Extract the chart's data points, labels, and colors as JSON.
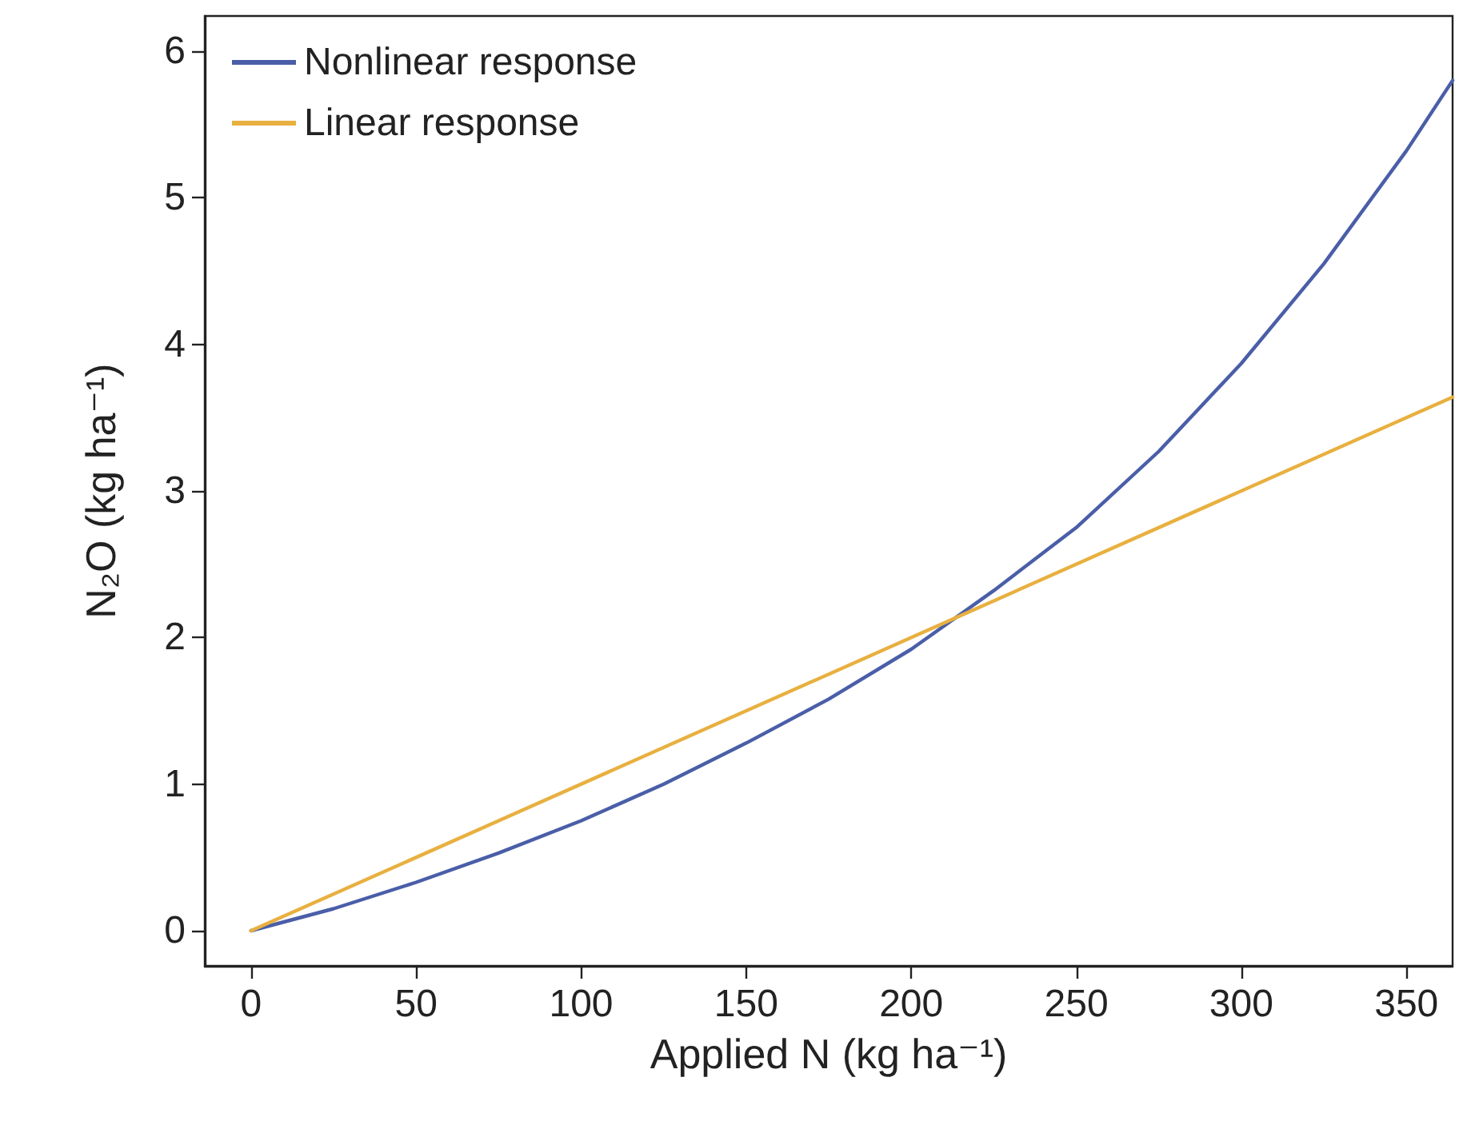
{
  "chart_data": {
    "type": "line",
    "xlabel": "Applied N (kg ha⁻¹)",
    "ylabel": "N₂O (kg ha⁻¹)",
    "xlim": [
      -14,
      364
    ],
    "ylim": [
      -0.24,
      6.24
    ],
    "xticks": [
      0,
      50,
      100,
      150,
      200,
      250,
      300,
      350
    ],
    "yticks": [
      0,
      1,
      2,
      3,
      4,
      5,
      6
    ],
    "grid": false,
    "legend": "top left",
    "marker": "none",
    "line_style": "solid",
    "series": [
      {
        "name": "Nonlinear response",
        "color": "#4a5ea8",
        "x": [
          0,
          25,
          50,
          75,
          100,
          125,
          150,
          175,
          200,
          225,
          250,
          275,
          300,
          325,
          350,
          364
        ],
        "values": [
          0,
          0.15,
          0.33,
          0.53,
          0.75,
          1.0,
          1.28,
          1.58,
          1.92,
          2.32,
          2.75,
          3.27,
          3.87,
          4.55,
          5.32,
          5.8
        ]
      },
      {
        "name": "Linear response",
        "color": "#e8b040",
        "x": [
          0,
          364
        ],
        "values": [
          0,
          3.64
        ]
      }
    ]
  }
}
